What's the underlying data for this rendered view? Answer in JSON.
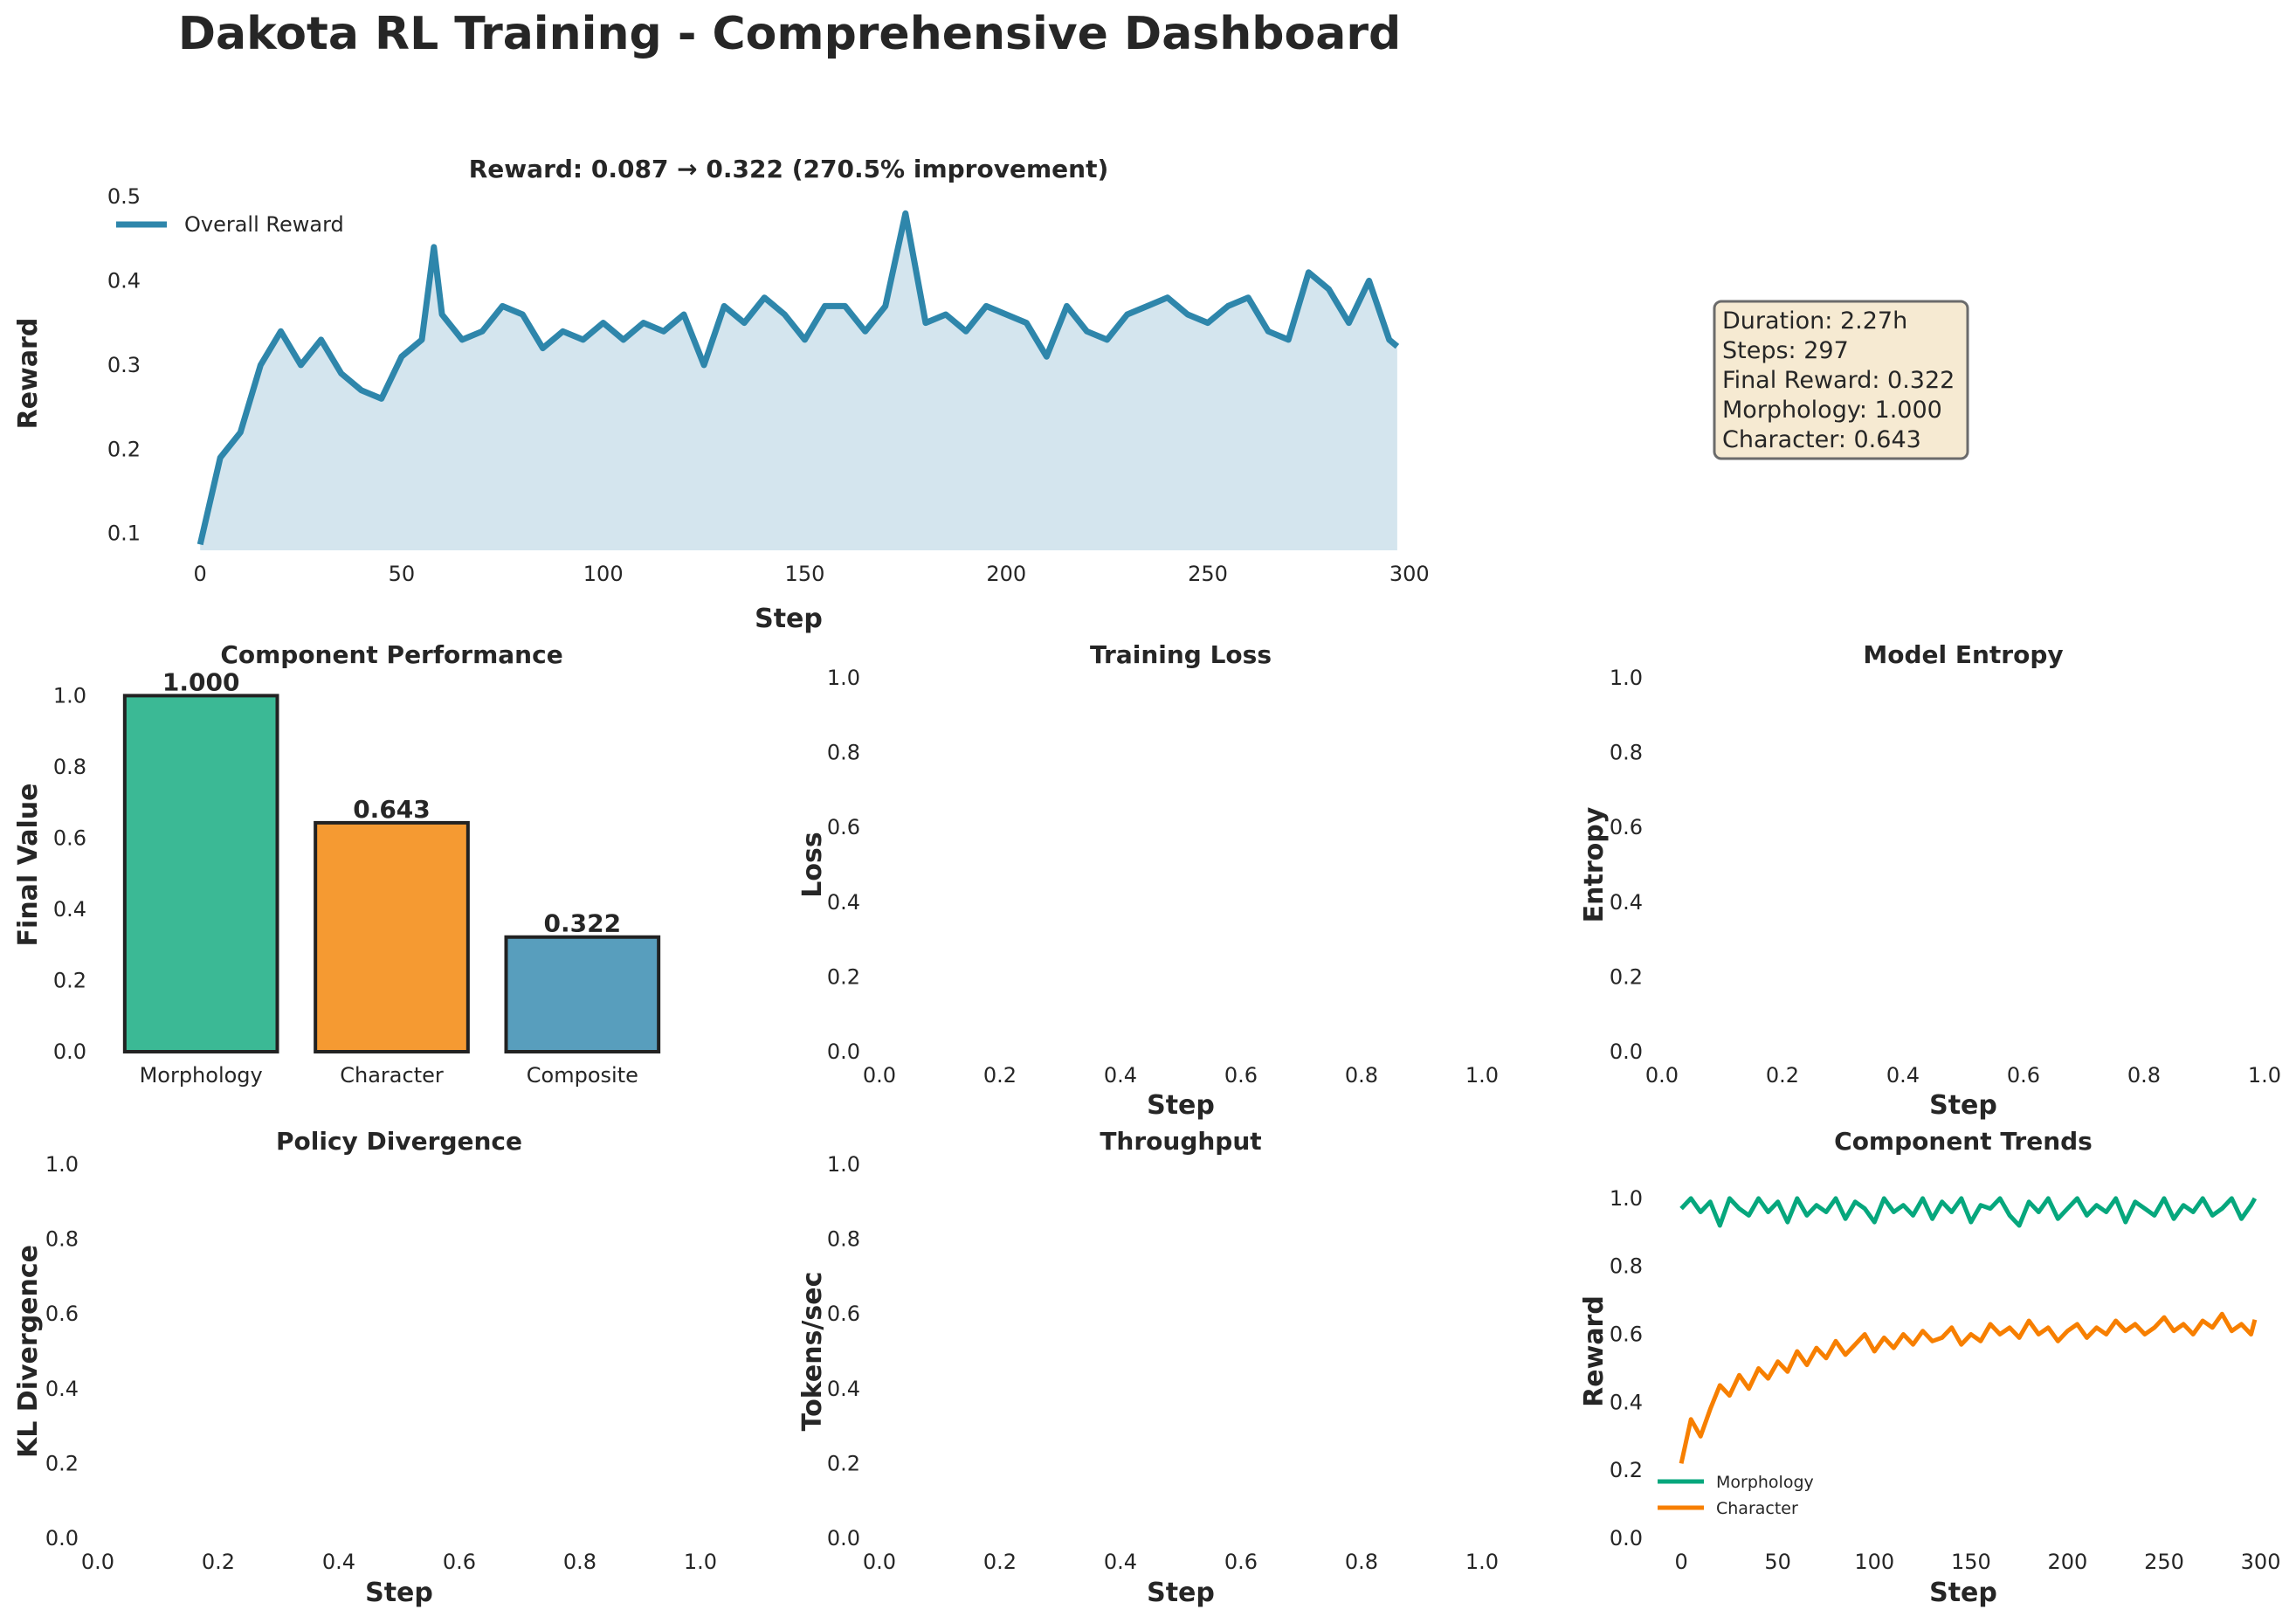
{
  "suptitle": "Dakota RL Training - Comprehensive Dashboard",
  "info_box": {
    "lines": [
      "Duration: 2.27h",
      "Steps: 297",
      "Final Reward: 0.322",
      "Morphology: 1.000",
      "Character: 0.643"
    ],
    "fill": "#f6ead2",
    "stroke": "#6b6b6b"
  },
  "chart_data": [
    {
      "id": "reward",
      "type": "area",
      "title": "Reward: 0.087 → 0.322 (270.5% improvement)",
      "xlabel": "Step",
      "ylabel": "Reward",
      "xlim": [
        -10,
        302
      ],
      "ylim": [
        0.08,
        0.5
      ],
      "xticks": [
        0,
        50,
        100,
        150,
        200,
        250,
        300
      ],
      "yticks": [
        0.1,
        0.2,
        0.3,
        0.4,
        0.5
      ],
      "legend": "top-left",
      "series": [
        {
          "name": "Overall Reward",
          "color": "#2e86ab",
          "fill": "#d4e5ee",
          "x": [
            0,
            5,
            10,
            15,
            20,
            25,
            30,
            35,
            40,
            45,
            50,
            55,
            58,
            60,
            65,
            70,
            75,
            80,
            85,
            90,
            95,
            100,
            105,
            110,
            115,
            120,
            125,
            130,
            135,
            140,
            145,
            150,
            155,
            160,
            165,
            170,
            175,
            180,
            185,
            190,
            195,
            200,
            205,
            210,
            215,
            220,
            225,
            230,
            235,
            240,
            245,
            250,
            255,
            260,
            265,
            270,
            275,
            280,
            285,
            290,
            295,
            297
          ],
          "values": [
            0.087,
            0.19,
            0.22,
            0.3,
            0.34,
            0.3,
            0.33,
            0.29,
            0.27,
            0.26,
            0.31,
            0.33,
            0.44,
            0.36,
            0.33,
            0.34,
            0.37,
            0.36,
            0.32,
            0.34,
            0.33,
            0.35,
            0.33,
            0.35,
            0.34,
            0.36,
            0.3,
            0.37,
            0.35,
            0.38,
            0.36,
            0.33,
            0.37,
            0.37,
            0.34,
            0.37,
            0.48,
            0.35,
            0.36,
            0.34,
            0.37,
            0.36,
            0.35,
            0.31,
            0.37,
            0.34,
            0.33,
            0.36,
            0.37,
            0.38,
            0.36,
            0.35,
            0.37,
            0.38,
            0.34,
            0.33,
            0.41,
            0.39,
            0.35,
            0.4,
            0.33,
            0.322
          ]
        }
      ]
    },
    {
      "id": "components",
      "type": "bar",
      "title": "Component Performance",
      "xlabel": "",
      "ylabel": "Final Value",
      "ylim": [
        0,
        1.05
      ],
      "yticks": [
        0.0,
        0.2,
        0.4,
        0.6,
        0.8,
        1.0
      ],
      "categories": [
        "Morphology",
        "Character",
        "Composite"
      ],
      "values": [
        1.0,
        0.643,
        0.322
      ],
      "labels": [
        "1.000",
        "0.643",
        "0.322"
      ],
      "colors": [
        "#3bb995",
        "#f59a32",
        "#589ebd"
      ]
    },
    {
      "id": "loss",
      "type": "line",
      "title": "Training Loss",
      "xlabel": "Step",
      "ylabel": "Loss",
      "xlim": [
        0,
        1
      ],
      "ylim": [
        0,
        1
      ],
      "xticks": [
        0.0,
        0.2,
        0.4,
        0.6,
        0.8,
        1.0
      ],
      "yticks": [
        0.0,
        0.2,
        0.4,
        0.6,
        0.8,
        1.0
      ],
      "series": []
    },
    {
      "id": "entropy",
      "type": "line",
      "title": "Model Entropy",
      "xlabel": "Step",
      "ylabel": "Entropy",
      "xlim": [
        0,
        1
      ],
      "ylim": [
        0,
        1
      ],
      "xticks": [
        0.0,
        0.2,
        0.4,
        0.6,
        0.8,
        1.0
      ],
      "yticks": [
        0.0,
        0.2,
        0.4,
        0.6,
        0.8,
        1.0
      ],
      "series": []
    },
    {
      "id": "kl",
      "type": "line",
      "title": "Policy Divergence",
      "xlabel": "Step",
      "ylabel": "KL Divergence",
      "xlim": [
        0,
        1
      ],
      "ylim": [
        0,
        1
      ],
      "xticks": [
        0.0,
        0.2,
        0.4,
        0.6,
        0.8,
        1.0
      ],
      "yticks": [
        0.0,
        0.2,
        0.4,
        0.6,
        0.8,
        1.0
      ],
      "series": []
    },
    {
      "id": "throughput",
      "type": "line",
      "title": "Throughput",
      "xlabel": "Step",
      "ylabel": "Tokens/sec",
      "xlim": [
        0,
        1
      ],
      "ylim": [
        0,
        1
      ],
      "xticks": [
        0.0,
        0.2,
        0.4,
        0.6,
        0.8,
        1.0
      ],
      "yticks": [
        0.0,
        0.2,
        0.4,
        0.6,
        0.8,
        1.0
      ],
      "series": []
    },
    {
      "id": "trends",
      "type": "line",
      "title": "Component Trends",
      "xlabel": "Step",
      "ylabel": "Reward",
      "xlim": [
        -10,
        302
      ],
      "ylim": [
        0,
        1.1
      ],
      "xticks": [
        0,
        50,
        100,
        150,
        200,
        250,
        300
      ],
      "yticks": [
        0.0,
        0.2,
        0.4,
        0.6,
        0.8,
        1.0
      ],
      "legend": "lower-left",
      "series": [
        {
          "name": "Morphology",
          "color": "#06a77d",
          "x": [
            0,
            5,
            10,
            15,
            20,
            25,
            30,
            35,
            40,
            45,
            50,
            55,
            60,
            65,
            70,
            75,
            80,
            85,
            90,
            95,
            100,
            105,
            110,
            115,
            120,
            125,
            130,
            135,
            140,
            145,
            150,
            155,
            160,
            165,
            170,
            175,
            180,
            185,
            190,
            195,
            200,
            205,
            210,
            215,
            220,
            225,
            230,
            235,
            240,
            245,
            250,
            255,
            260,
            265,
            270,
            275,
            280,
            285,
            290,
            295,
            297
          ],
          "values": [
            0.97,
            1.0,
            0.96,
            0.99,
            0.92,
            1.0,
            0.97,
            0.95,
            1.0,
            0.96,
            0.99,
            0.93,
            1.0,
            0.95,
            0.98,
            0.96,
            1.0,
            0.94,
            0.99,
            0.97,
            0.93,
            1.0,
            0.96,
            0.98,
            0.95,
            1.0,
            0.94,
            0.99,
            0.96,
            1.0,
            0.93,
            0.98,
            0.97,
            1.0,
            0.95,
            0.92,
            0.99,
            0.96,
            1.0,
            0.94,
            0.97,
            1.0,
            0.95,
            0.98,
            0.96,
            1.0,
            0.93,
            0.99,
            0.97,
            0.95,
            1.0,
            0.94,
            0.98,
            0.96,
            1.0,
            0.95,
            0.97,
            1.0,
            0.94,
            0.98,
            1.0
          ]
        },
        {
          "name": "Character",
          "color": "#f77f00",
          "x": [
            0,
            5,
            10,
            15,
            20,
            25,
            30,
            35,
            40,
            45,
            50,
            55,
            60,
            65,
            70,
            75,
            80,
            85,
            90,
            95,
            100,
            105,
            110,
            115,
            120,
            125,
            130,
            135,
            140,
            145,
            150,
            155,
            160,
            165,
            170,
            175,
            180,
            185,
            190,
            195,
            200,
            205,
            210,
            215,
            220,
            225,
            230,
            235,
            240,
            245,
            250,
            255,
            260,
            265,
            270,
            275,
            280,
            285,
            290,
            295,
            297
          ],
          "values": [
            0.22,
            0.35,
            0.3,
            0.38,
            0.45,
            0.42,
            0.48,
            0.44,
            0.5,
            0.47,
            0.52,
            0.49,
            0.55,
            0.51,
            0.56,
            0.53,
            0.58,
            0.54,
            0.57,
            0.6,
            0.55,
            0.59,
            0.56,
            0.6,
            0.57,
            0.61,
            0.58,
            0.59,
            0.62,
            0.57,
            0.6,
            0.58,
            0.63,
            0.6,
            0.62,
            0.59,
            0.64,
            0.6,
            0.62,
            0.58,
            0.61,
            0.63,
            0.59,
            0.62,
            0.6,
            0.64,
            0.61,
            0.63,
            0.6,
            0.62,
            0.65,
            0.61,
            0.63,
            0.6,
            0.64,
            0.62,
            0.66,
            0.61,
            0.63,
            0.6,
            0.643
          ]
        }
      ]
    }
  ]
}
